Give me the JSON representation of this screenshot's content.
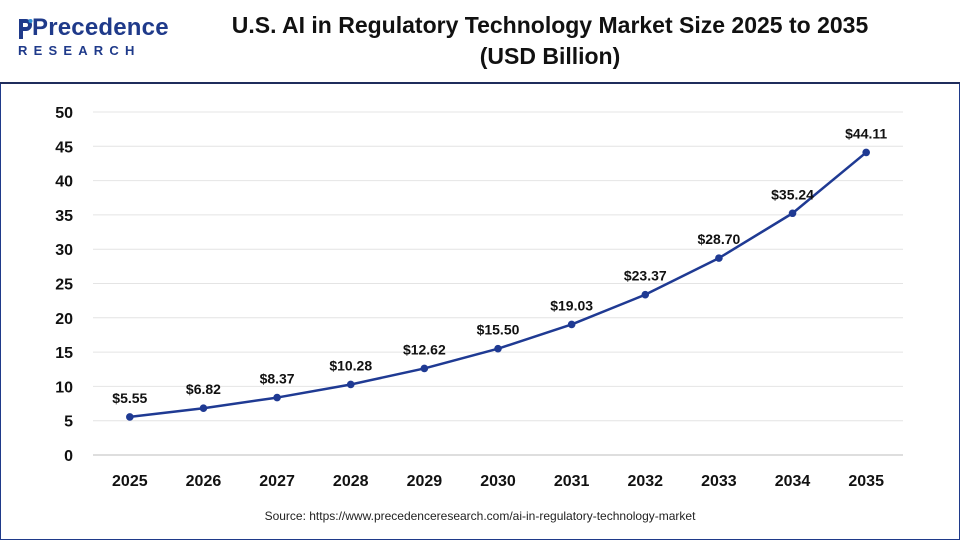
{
  "brand": {
    "logo_text": "Precedence",
    "logo_sub": "RESEARCH"
  },
  "title": {
    "line1": "U.S. AI in Regulatory Technology Market Size 2025 to 2035",
    "line2": "(USD Billion)"
  },
  "source": "Source: https://www.precedenceresearch.com/ai-in-regulatory-technology-market",
  "colors": {
    "line": "#1f3a93",
    "marker": "#1f3a93",
    "grid": "#e4e4e4",
    "header_border": "#1f2d5c"
  },
  "chart_data": {
    "type": "line",
    "categories": [
      "2025",
      "2026",
      "2027",
      "2028",
      "2029",
      "2030",
      "2031",
      "2032",
      "2033",
      "2034",
      "2035"
    ],
    "series": [
      {
        "values": [
          5.55,
          6.82,
          8.37,
          10.28,
          12.62,
          15.5,
          19.03,
          23.37,
          28.7,
          35.24,
          44.11
        ],
        "labels": [
          "$5.55",
          "$6.82",
          "$8.37",
          "$10.28",
          "$12.62",
          "$15.50",
          "$19.03",
          "$23.37",
          "$28.70",
          "$35.24",
          "$44.11"
        ]
      }
    ],
    "ylim": [
      0,
      50
    ],
    "yticks": [
      0,
      5,
      10,
      15,
      20,
      25,
      30,
      35,
      40,
      45,
      50
    ],
    "grid": true,
    "xlabel": "",
    "ylabel": ""
  }
}
